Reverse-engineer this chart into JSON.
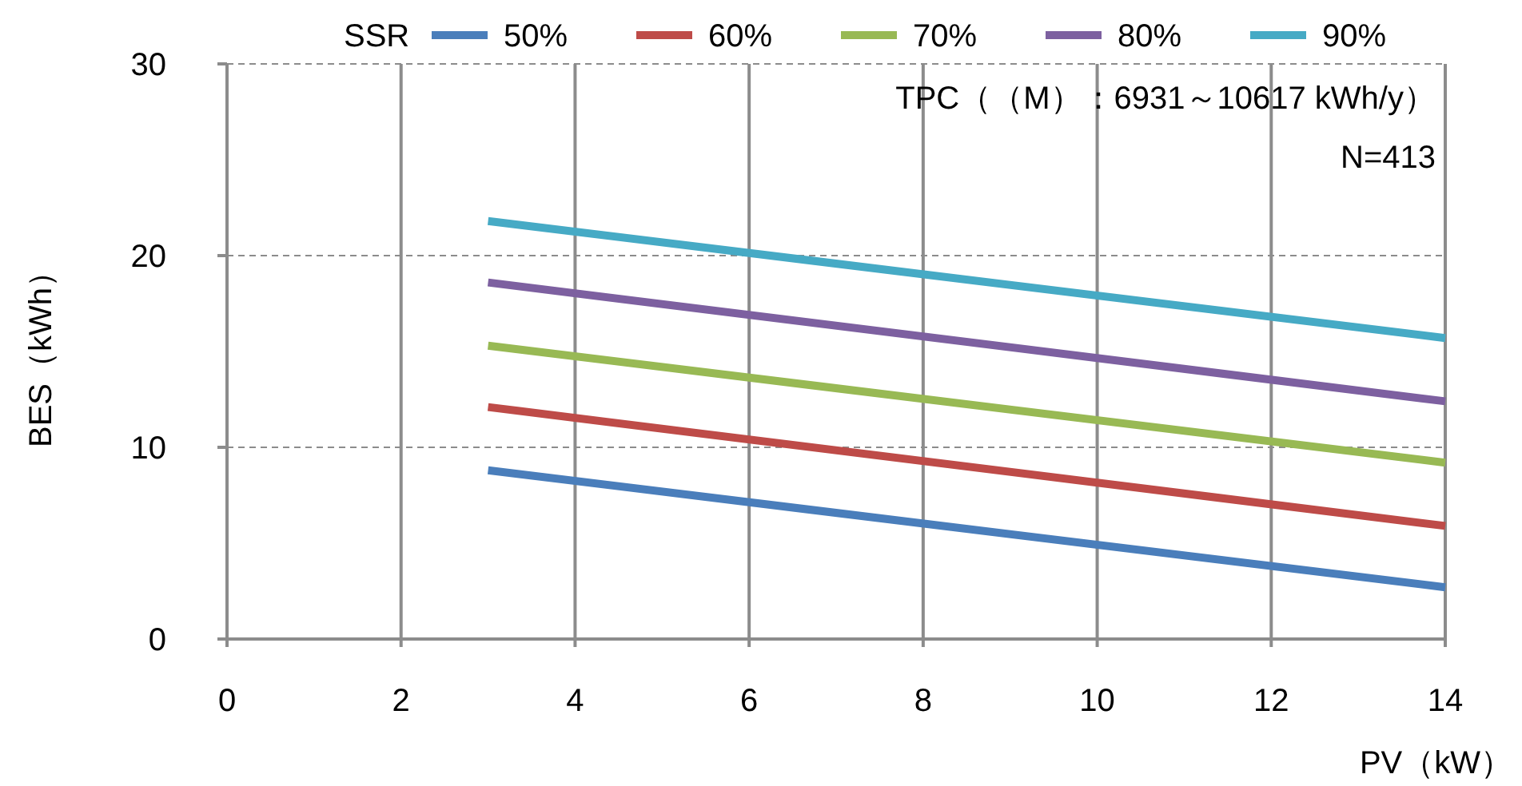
{
  "chart_data": {
    "type": "line",
    "xlabel": "PV（kW）",
    "ylabel": "BES（kWh）",
    "legend_title": "SSR",
    "x": [
      3,
      14
    ],
    "series": [
      {
        "name": "50%",
        "color": "#4a7ebb",
        "values": [
          8.8,
          2.7
        ]
      },
      {
        "name": "60%",
        "color": "#be4b48",
        "values": [
          12.1,
          5.9
        ]
      },
      {
        "name": "70%",
        "color": "#98b954",
        "values": [
          15.3,
          9.2
        ]
      },
      {
        "name": "80%",
        "color": "#7d60a0",
        "values": [
          18.6,
          12.4
        ]
      },
      {
        "name": "90%",
        "color": "#46aac5",
        "values": [
          21.8,
          15.7
        ]
      }
    ],
    "xlim": [
      0,
      14
    ],
    "xticks": [
      0,
      2,
      4,
      6,
      8,
      10,
      12,
      14
    ],
    "ylim": [
      0,
      30
    ],
    "yticks": [
      0,
      10,
      20,
      30
    ],
    "grid": true,
    "legend": "top",
    "marker": "none",
    "line_style": "solid",
    "annotations": [
      "TPC（（M）：6931～10617 kWh/y）",
      "N=413"
    ]
  }
}
